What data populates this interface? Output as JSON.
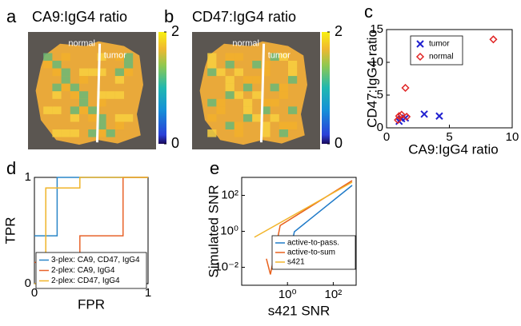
{
  "chart_data": [
    {
      "type": "heatmap",
      "panel": "a",
      "title": "CA9:IgG4 ratio",
      "annotations": [
        "normal",
        "tumor"
      ],
      "colorbar_lim": [
        0,
        2
      ],
      "colorbar_ticks": [
        0,
        2
      ]
    },
    {
      "type": "heatmap",
      "panel": "b",
      "title": "CD47:IgG4 ratio",
      "annotations": [
        "normal",
        "tumor"
      ],
      "colorbar_lim": [
        0,
        2
      ],
      "colorbar_ticks": [
        0,
        2
      ]
    },
    {
      "type": "scatter",
      "panel": "c",
      "xlabel": "CA9:IgG4 ratio",
      "ylabel": "CD47:IgG4 ratio",
      "xlim": [
        0,
        10
      ],
      "ylim": [
        0,
        15
      ],
      "xticks": [
        0,
        5,
        10
      ],
      "yticks": [
        0,
        5,
        10,
        15
      ],
      "series": [
        {
          "name": "tumor",
          "color": "#2020d0",
          "marker": "x",
          "x": [
            1.0,
            1.2,
            1.5,
            3.0,
            4.2
          ],
          "values": [
            1.0,
            1.4,
            1.5,
            2.1,
            1.8
          ]
        },
        {
          "name": "normal",
          "color": "#e02424",
          "marker": "diamond",
          "x": [
            8.5,
            1.5,
            1.2,
            1.0,
            1.6,
            0.9
          ],
          "values": [
            13.5,
            6.1,
            2.0,
            1.8,
            1.7,
            1.2
          ]
        }
      ]
    },
    {
      "type": "step",
      "panel": "d",
      "xlabel": "FPR",
      "ylabel": "TPR",
      "xlim": [
        0,
        1
      ],
      "ylim": [
        0,
        1
      ],
      "xticks": [
        0,
        1
      ],
      "yticks": [
        0,
        1
      ],
      "series": [
        {
          "name": "3-plex: CA9, CD47, IgG4",
          "color": "#2a86c8",
          "x": [
            0,
            0.2,
            0.2,
            1
          ],
          "values": [
            0.45,
            0.45,
            1,
            1
          ]
        },
        {
          "name": "2-plex: CA9, IgG4",
          "color": "#e8632b",
          "x": [
            0,
            0.4,
            0.4,
            0.78,
            0.78,
            1
          ],
          "values": [
            0.2,
            0.2,
            0.45,
            0.45,
            1,
            1
          ]
        },
        {
          "name": "2-plex: CD47, IgG4",
          "color": "#f0b429",
          "x": [
            0,
            0.1,
            0.1,
            0.4,
            0.4,
            1
          ],
          "values": [
            0,
            0,
            0.9,
            0.9,
            1,
            1
          ]
        }
      ]
    },
    {
      "type": "line",
      "panel": "e",
      "xlabel": "s421 SNR",
      "ylabel": "Simulated SNR",
      "xscale": "log",
      "yscale": "log",
      "xlim": [
        0.01,
        1000
      ],
      "ylim": [
        0.001,
        1000
      ],
      "xticks": [
        {
          "value": 1,
          "label": "10⁰"
        },
        {
          "value": 100,
          "label": "10²"
        }
      ],
      "yticks": [
        {
          "value": 0.01,
          "label": "10⁻²"
        },
        {
          "value": 1,
          "label": "10⁰"
        },
        {
          "value": 100,
          "label": "10²"
        }
      ],
      "series": [
        {
          "name": "active-to-pass.",
          "color": "#1f7ac8",
          "x": [
            0.71,
            0.9,
            2.0,
            670
          ],
          "values": [
            0.044,
            0.008,
            0.95,
            360
          ]
        },
        {
          "name": "active-to-sum",
          "color": "#e8601c",
          "x": [
            0.12,
            0.18,
            0.48,
            670
          ],
          "values": [
            0.03,
            0.004,
            2.1,
            660
          ]
        },
        {
          "name": "s421",
          "color": "#f2b52b",
          "x": [
            0.036,
            670
          ],
          "values": [
            0.47,
            540
          ]
        }
      ]
    }
  ]
}
